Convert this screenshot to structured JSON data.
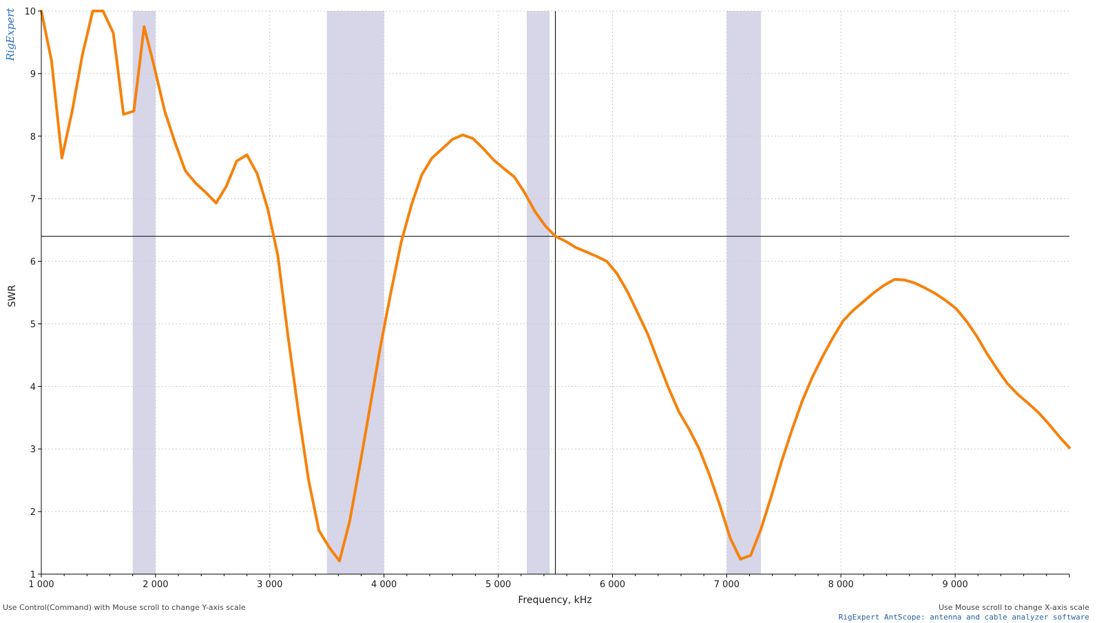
{
  "logo": "RigExpert",
  "hints": {
    "y_scale": "Use Control(Command) with Mouse scroll to change Y-axis scale",
    "x_scale": "Use Mouse scroll to change X-axis scale"
  },
  "app_caption": "RigExpert AntScope: antenna and cable analyzer software",
  "colors": {
    "curve": "#f5820d",
    "band": "#d6d6e8",
    "cursor": "#000000",
    "grid": "#c8c8c8"
  },
  "chart_data": {
    "type": "line",
    "xlabel": "Frequency, kHz",
    "ylabel": "SWR",
    "xlim": [
      1000,
      10000
    ],
    "ylim": [
      1,
      10
    ],
    "grid": true,
    "x_ticks": [
      1000,
      2000,
      3000,
      4000,
      5000,
      6000,
      7000,
      8000,
      9000
    ],
    "x_tick_labels": [
      "1 000",
      "2 000",
      "3 000",
      "4 000",
      "5 000",
      "6 000",
      "7 000",
      "8 000",
      "9 000"
    ],
    "y_ticks": [
      1,
      2,
      3,
      4,
      5,
      6,
      7,
      8,
      9,
      10
    ],
    "y_tick_labels": [
      "1",
      "2",
      "3",
      "4",
      "5",
      "6",
      "7",
      "8",
      "9",
      "10"
    ],
    "bands": [
      [
        1800,
        2000
      ],
      [
        3500,
        4000
      ],
      [
        5250,
        5450
      ],
      [
        7000,
        7300
      ]
    ],
    "cursor": {
      "x": 5500,
      "y": 6.4
    },
    "series": [
      {
        "x": [
          1000,
          1090,
          1180,
          1270,
          1360,
          1450,
          1540,
          1630,
          1720,
          1810,
          1900,
          1990,
          2080,
          2170,
          2260,
          2350,
          2440,
          2530,
          2620,
          2710,
          2800,
          2890,
          2980,
          3070,
          3160,
          3250,
          3340,
          3430,
          3520,
          3610,
          3700,
          3790,
          3880,
          3970,
          4060,
          4150,
          4240,
          4330,
          4420,
          4510,
          4600,
          4690,
          4780,
          4870,
          4960,
          5050,
          5140,
          5230,
          5320,
          5410,
          5500,
          5590,
          5680,
          5770,
          5860,
          5950,
          6040,
          6130,
          6220,
          6310,
          6400,
          6490,
          6580,
          6670,
          6760,
          6850,
          6940,
          7030,
          7120,
          7210,
          7300,
          7390,
          7480,
          7570,
          7660,
          7750,
          7840,
          7930,
          8020,
          8110,
          8200,
          8290,
          8380,
          8470,
          8560,
          8650,
          8740,
          8830,
          8920,
          9010,
          9100,
          9190,
          9280,
          9370,
          9460,
          9550,
          9640,
          9730,
          9820,
          9910,
          10000
        ],
        "values": [
          10.0,
          9.2,
          7.65,
          8.4,
          9.3,
          10.0,
          10.0,
          9.65,
          8.35,
          8.4,
          9.75,
          9.1,
          8.4,
          7.9,
          7.45,
          7.25,
          7.1,
          6.93,
          7.2,
          7.6,
          7.7,
          7.4,
          6.85,
          6.1,
          4.8,
          3.6,
          2.5,
          1.7,
          1.43,
          1.21,
          1.85,
          2.75,
          3.7,
          4.65,
          5.5,
          6.3,
          6.9,
          7.38,
          7.65,
          7.8,
          7.95,
          8.02,
          7.96,
          7.8,
          7.62,
          7.48,
          7.35,
          7.1,
          6.8,
          6.57,
          6.4,
          6.32,
          6.22,
          6.15,
          6.08,
          6.0,
          5.8,
          5.52,
          5.18,
          4.83,
          4.4,
          3.98,
          3.6,
          3.32,
          3.0,
          2.58,
          2.1,
          1.58,
          1.24,
          1.3,
          1.72,
          2.24,
          2.8,
          3.3,
          3.76,
          4.15,
          4.48,
          4.78,
          5.05,
          5.22,
          5.36,
          5.5,
          5.62,
          5.71,
          5.7,
          5.65,
          5.57,
          5.48,
          5.37,
          5.24,
          5.04,
          4.8,
          4.52,
          4.27,
          4.04,
          3.87,
          3.73,
          3.58,
          3.4,
          3.2,
          3.02
        ]
      }
    ]
  }
}
